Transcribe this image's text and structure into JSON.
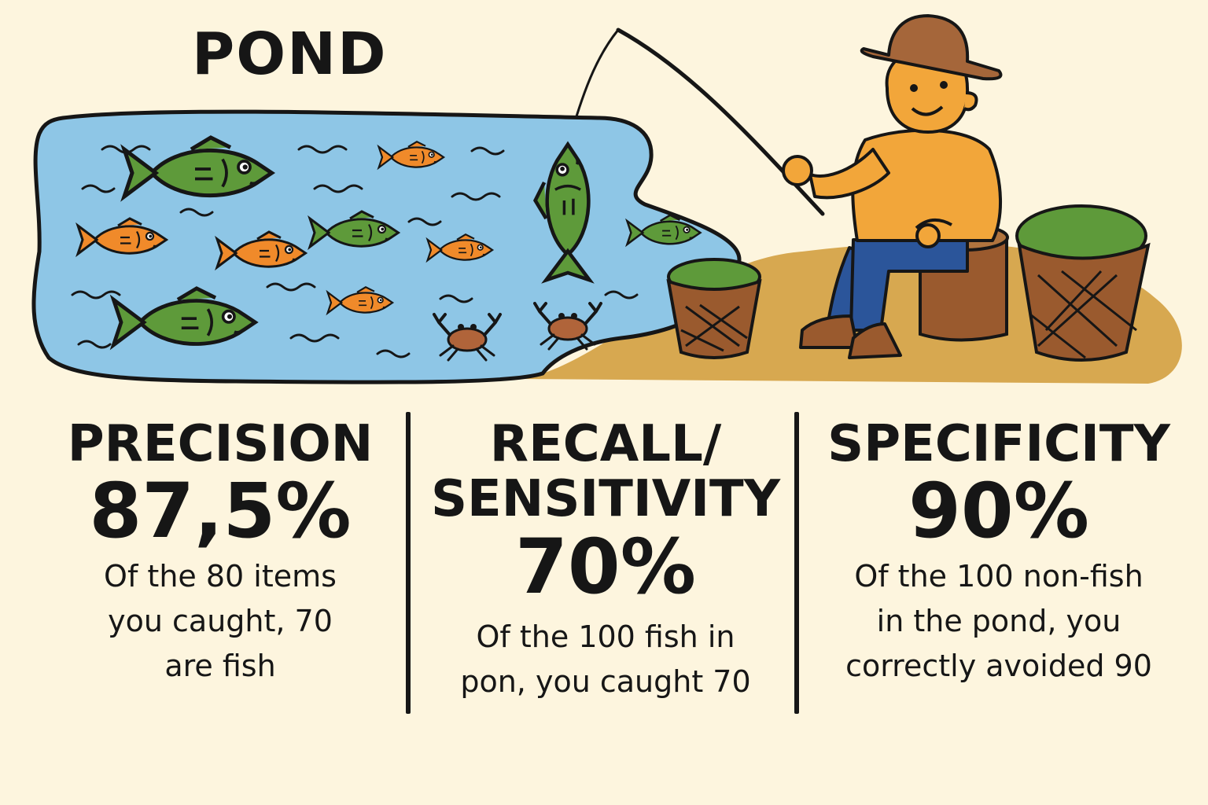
{
  "title": "POND",
  "metrics": [
    {
      "name": "PRECISION",
      "value": "87,5%",
      "desc_lines": [
        "Of the 80 items",
        "you caught, 70",
        "are fish"
      ]
    },
    {
      "name_lines": [
        "RECALL/",
        "SENSITIVITY"
      ],
      "value": "70%",
      "desc_lines": [
        "Of the 100 fish in",
        "pon, you caught 70"
      ]
    },
    {
      "name": "SPECIFICITY",
      "value": "90%",
      "desc_lines": [
        "Of the 100 non-fish",
        "in the pond, you",
        "correctly avoided 90"
      ]
    }
  ],
  "colors": {
    "background": "#fdf5de",
    "water": "#8ec6e6",
    "green_fish": "#5e9a3a",
    "orange_fish": "#f08a2a",
    "crab": "#b0643a",
    "shore": "#d7a850",
    "shirt": "#f2a63a",
    "pants": "#2b559a",
    "hat": "#a5663a",
    "basket": "#9a5a2e",
    "ink": "#161616"
  },
  "icons": [
    "fish-icon",
    "crab-icon",
    "fisherman-icon",
    "basket-icon",
    "fishing-rod-icon"
  ]
}
